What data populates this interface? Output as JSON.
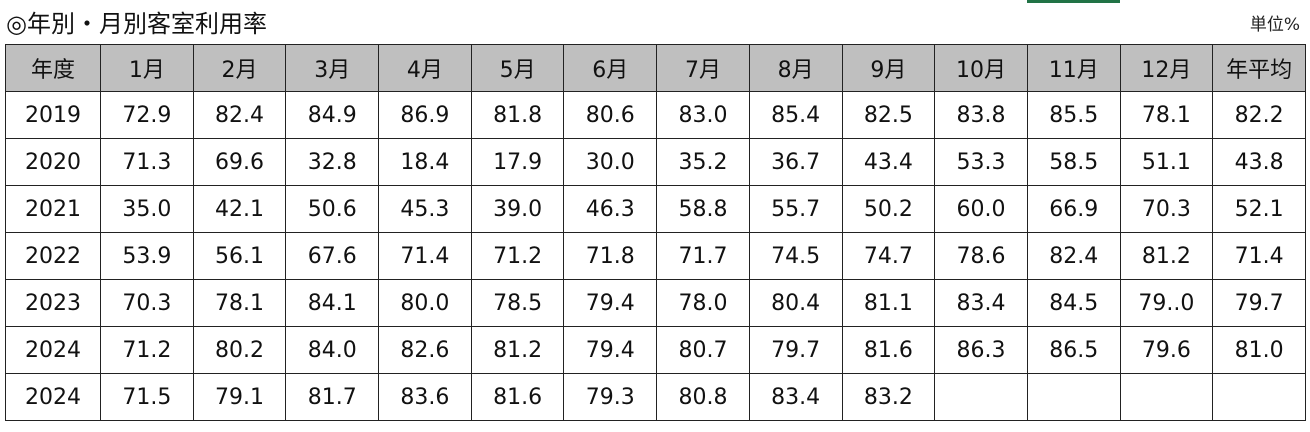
{
  "title": "◎年別・月別客室利用率",
  "unit": "単位%",
  "table": {
    "header": [
      "年度",
      "1月",
      "2月",
      "3月",
      "4月",
      "5月",
      "6月",
      "7月",
      "8月",
      "9月",
      "10月",
      "11月",
      "12月",
      "年平均"
    ],
    "rows": [
      [
        "2019",
        "72.9",
        "82.4",
        "84.9",
        "86.9",
        "81.8",
        "80.6",
        "83.0",
        "85.4",
        "82.5",
        "83.8",
        "85.5",
        "78.1",
        "82.2"
      ],
      [
        "2020",
        "71.3",
        "69.6",
        "32.8",
        "18.4",
        "17.9",
        "30.0",
        "35.2",
        "36.7",
        "43.4",
        "53.3",
        "58.5",
        "51.1",
        "43.8"
      ],
      [
        "2021",
        "35.0",
        "42.1",
        "50.6",
        "45.3",
        "39.0",
        "46.3",
        "58.8",
        "55.7",
        "50.2",
        "60.0",
        "66.9",
        "70.3",
        "52.1"
      ],
      [
        "2022",
        "53.9",
        "56.1",
        "67.6",
        "71.4",
        "71.2",
        "71.8",
        "71.7",
        "74.5",
        "74.7",
        "78.6",
        "82.4",
        "81.2",
        "71.4"
      ],
      [
        "2023",
        "70.3",
        "78.1",
        "84.1",
        "80.0",
        "78.5",
        "79.4",
        "78.0",
        "80.4",
        "81.1",
        "83.4",
        "84.5",
        "79..0",
        "79.7"
      ],
      [
        "2024",
        "71.2",
        "80.2",
        "84.0",
        "82.6",
        "81.2",
        "79.4",
        "80.7",
        "79.7",
        "81.6",
        "86.3",
        "86.5",
        "79.6",
        "81.0"
      ],
      [
        "2024",
        "71.5",
        "79.1",
        "81.7",
        "83.6",
        "81.6",
        "79.3",
        "80.8",
        "83.4",
        "83.2"
      ]
    ]
  }
}
